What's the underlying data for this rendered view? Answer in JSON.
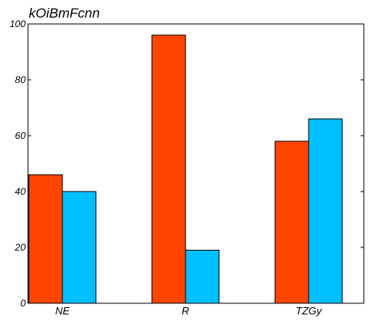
{
  "chart_data": {
    "type": "bar",
    "title": "kOiBmFcnn",
    "xlabel": "",
    "ylabel": "",
    "categories": [
      "NE",
      "R",
      "TZGy"
    ],
    "series": [
      {
        "values": [
          46,
          96,
          58
        ],
        "color": "#ff4500"
      },
      {
        "values": [
          40,
          19,
          66
        ],
        "color": "#00bfff"
      }
    ],
    "ylim": [
      0,
      100
    ],
    "yticks": [
      "0",
      "20",
      "40",
      "60",
      "80",
      "100"
    ],
    "grid": false
  }
}
